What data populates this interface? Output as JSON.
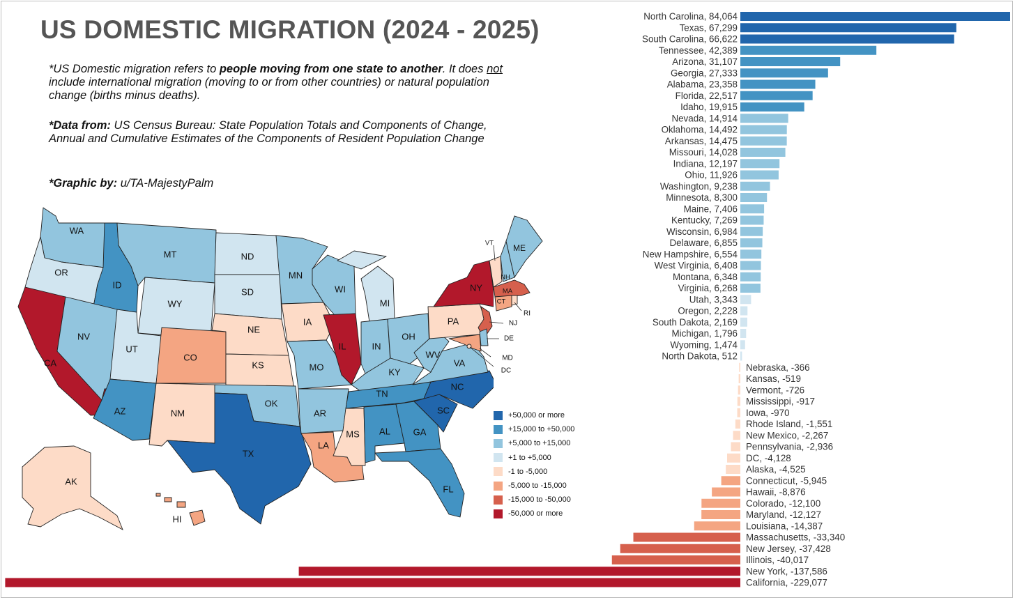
{
  "title": "US DOMESTIC MIGRATION (2024 - 2025)",
  "notes": {
    "definition": {
      "prefix": "*US Domestic migration refers to ",
      "bold": "people moving from one state to another",
      "mid": ". It does ",
      "underlined": "not",
      "rest": " include international migration (moving to or from other countries) or natural population change (births minus deaths)."
    },
    "source": {
      "label": "*Data from:",
      "text": " US Census Bureau: State Population Totals and Components of Change, Annual and Cumulative Estimates of the Components of Resident Population Change"
    },
    "credit": {
      "label": "*Graphic by:",
      "text": " u/TA-MajestyPalm"
    }
  },
  "legend": [
    {
      "label": "+50,000 or more",
      "color": "#2166ac"
    },
    {
      "label": "+15,000 to +50,000",
      "color": "#4393c3"
    },
    {
      "label": "+5,000 to +15,000",
      "color": "#92c5de"
    },
    {
      "label": "+1 to +5,000",
      "color": "#d1e5f0"
    },
    {
      "label": "-1 to -5,000",
      "color": "#fddbc7"
    },
    {
      "label": "-5,000 to -15,000",
      "color": "#f4a582"
    },
    {
      "label": "-15,000 to -50,000",
      "color": "#d6604d"
    },
    {
      "label": "-50,000 or more",
      "color": "#b2182b"
    }
  ],
  "map_labels": {
    "WA": "WA",
    "OR": "OR",
    "CA": "CA",
    "ID": "ID",
    "NV": "NV",
    "MT": "MT",
    "WY": "WY",
    "UT": "UT",
    "AZ": "AZ",
    "CO": "CO",
    "NM": "NM",
    "ND": "ND",
    "SD": "SD",
    "NE": "NE",
    "KS": "KS",
    "OK": "OK",
    "TX": "TX",
    "MN": "MN",
    "IA": "IA",
    "MO": "MO",
    "AR": "AR",
    "LA": "LA",
    "WI": "WI",
    "IL": "IL",
    "MI": "MI",
    "IN": "IN",
    "OH": "OH",
    "KY": "KY",
    "TN": "TN",
    "MS": "MS",
    "AL": "AL",
    "GA": "GA",
    "FL": "FL",
    "SC": "SC",
    "NC": "NC",
    "VA": "VA",
    "WV": "WV",
    "PA": "PA",
    "NY": "NY",
    "VT": "VT",
    "NH": "NH",
    "ME": "ME",
    "MA": "MA",
    "CT": "CT",
    "RI": "RI",
    "NJ": "NJ",
    "DE": "DE",
    "MD": "MD",
    "DC": "DC",
    "AK": "AK",
    "HI": "HI"
  },
  "chart_data": {
    "type": "bar",
    "orientation": "horizontal",
    "title": "",
    "xlabel": "",
    "ylabel": "",
    "grid": false,
    "categories": [
      "North Carolina",
      "Texas",
      "South Carolina",
      "Tennessee",
      "Arizona",
      "Georgia",
      "Alabama",
      "Florida",
      "Idaho",
      "Nevada",
      "Oklahoma",
      "Arkansas",
      "Missouri",
      "Indiana",
      "Ohio",
      "Washington",
      "Minnesota",
      "Maine",
      "Kentucky",
      "Wisconsin",
      "Delaware",
      "New Hampshire",
      "West Virginia",
      "Montana",
      "Virginia",
      "Utah",
      "Oregon",
      "South Dakota",
      "Michigan",
      "Wyoming",
      "North Dakota",
      "Nebraska",
      "Kansas",
      "Vermont",
      "Mississippi",
      "Iowa",
      "Rhode Island",
      "New Mexico",
      "Pennsylvania",
      "DC",
      "Alaska",
      "Connecticut",
      "Hawaii",
      "Colorado",
      "Maryland",
      "Louisiana",
      "Massachusetts",
      "New Jersey",
      "Illinois",
      "New York",
      "California"
    ],
    "values": [
      84064,
      67299,
      66622,
      42389,
      31107,
      27333,
      23358,
      22517,
      19915,
      14914,
      14492,
      14475,
      14028,
      12197,
      11926,
      9238,
      8300,
      7406,
      7269,
      6984,
      6855,
      6554,
      6408,
      6348,
      6268,
      3343,
      2228,
      2169,
      1796,
      1474,
      512,
      -366,
      -519,
      -726,
      -917,
      -970,
      -1551,
      -2267,
      -2936,
      -4128,
      -4525,
      -5945,
      -8876,
      -12100,
      -12127,
      -14387,
      -33340,
      -37428,
      -40017,
      -137586,
      -229077
    ],
    "labels": [
      "North Carolina, 84,064",
      "Texas, 67,299",
      "South Carolina, 66,622",
      "Tennessee, 42,389",
      "Arizona, 31,107",
      "Georgia, 27,333",
      "Alabama, 23,358",
      "Florida, 22,517",
      "Idaho, 19,915",
      "Nevada, 14,914",
      "Oklahoma, 14,492",
      "Arkansas, 14,475",
      "Missouri, 14,028",
      "Indiana, 12,197",
      "Ohio, 11,926",
      "Washington, 9,238",
      "Minnesota, 8,300",
      "Maine, 7,406",
      "Kentucky, 7,269",
      "Wisconsin, 6,984",
      "Delaware, 6,855",
      "New Hampshire, 6,554",
      "West Virginia, 6,408",
      "Montana, 6,348",
      "Virginia, 6,268",
      "Utah, 3,343",
      "Oregon, 2,228",
      "South Dakota, 2,169",
      "Michigan, 1,796",
      "Wyoming, 1,474",
      "North Dakota, 512",
      "Nebraska, -366",
      "Kansas, -519",
      "Vermont, -726",
      "Mississippi, -917",
      "Iowa, -970",
      "Rhode Island, -1,551",
      "New Mexico, -2,267",
      "Pennsylvania, -2,936",
      "DC, -4,128",
      "Alaska, -4,525",
      "Connecticut, -5,945",
      "Hawaii, -8,876",
      "Colorado, -12,100",
      "Maryland, -12,127",
      "Louisiana, -14,387",
      "Massachusetts, -33,340",
      "New Jersey, -37,428",
      "Illinois, -40,017",
      "New York, -137,586",
      "California, -229,077"
    ],
    "xlim": [
      -229077,
      84064
    ],
    "legend": "bottom-left"
  }
}
